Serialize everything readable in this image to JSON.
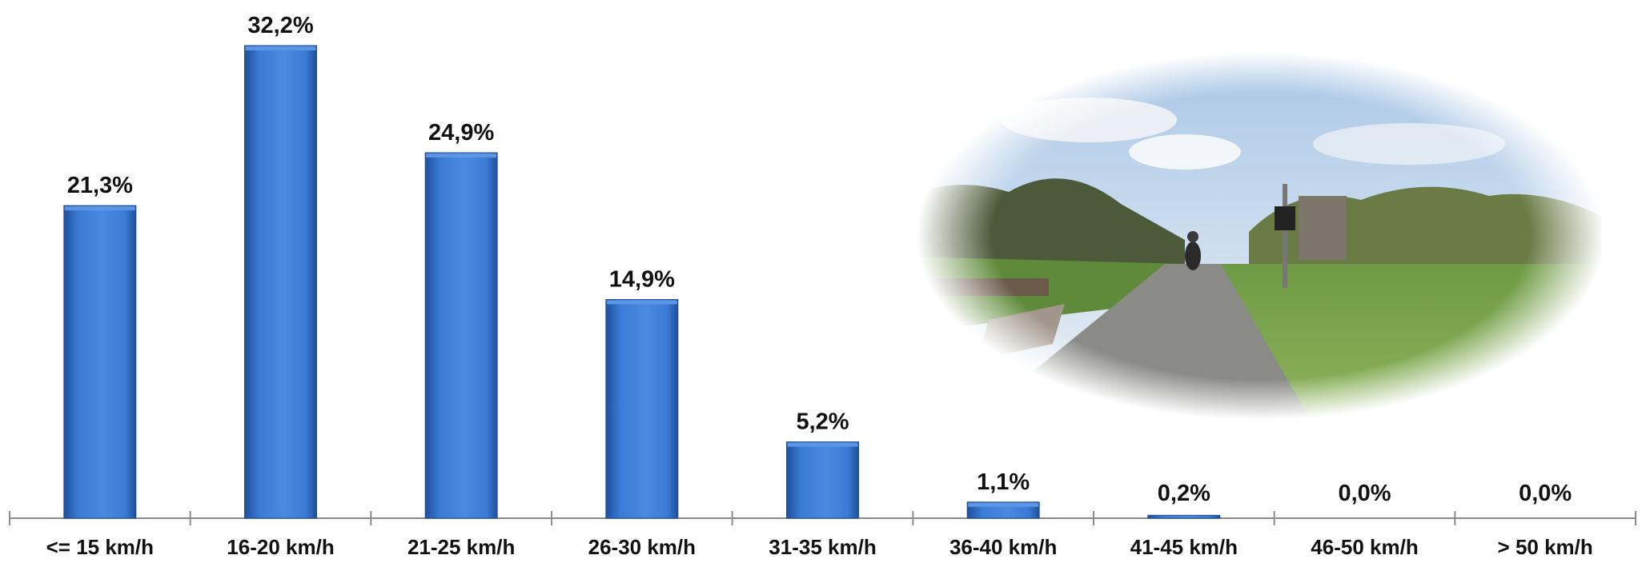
{
  "chart_data": {
    "type": "bar",
    "categories": [
      "<= 15 km/h",
      "16-20 km/h",
      "21-25 km/h",
      "26-30 km/h",
      "31-35 km/h",
      "36-40 km/h",
      "41-45 km/h",
      "46-50 km/h",
      "> 50 km/h"
    ],
    "values": [
      21.3,
      32.2,
      24.9,
      14.9,
      5.2,
      1.1,
      0.2,
      0.0,
      0.0
    ],
    "data_labels": [
      "21,3%",
      "32,2%",
      "24,9%",
      "14,9%",
      "5,2%",
      "1,1%",
      "0,2%",
      "0,0%",
      "0,0%"
    ],
    "ylim": [
      0,
      35
    ],
    "grid": false,
    "legend": "none",
    "bar_color": "#3a7bd5",
    "bar_dark": "#1f4f9a",
    "bar_light": "#5b95e3"
  },
  "inset_photo": {
    "subject": "cyclist on rural road photo",
    "sky_color": "#bcd3ea",
    "grass_color": "#7fa650",
    "road_color": "#8a8a87"
  }
}
